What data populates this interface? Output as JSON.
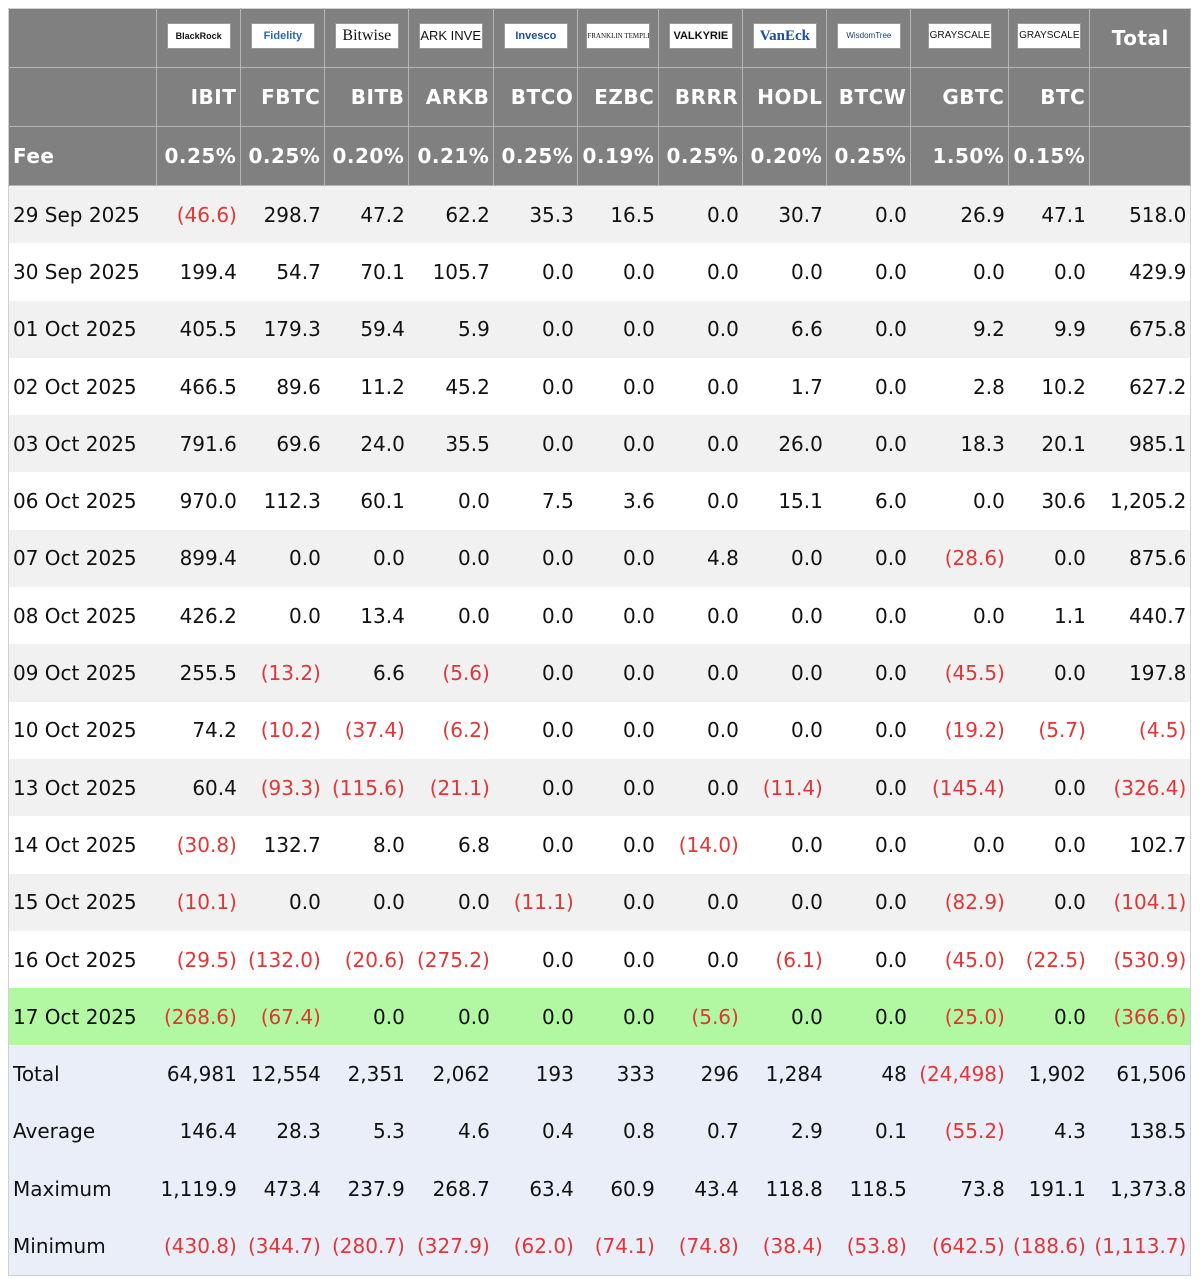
{
  "funds": [
    {
      "logo": "BlackRock",
      "ticker": "IBIT",
      "fee": "0.25%"
    },
    {
      "logo": "Fidelity",
      "ticker": "FBTC",
      "fee": "0.25%"
    },
    {
      "logo": "Bitwise",
      "ticker": "BITB",
      "fee": "0.20%"
    },
    {
      "logo": "ARK INVEST",
      "ticker": "ARKB",
      "fee": "0.21%"
    },
    {
      "logo": "Invesco",
      "ticker": "BTCO",
      "fee": "0.25%"
    },
    {
      "logo": "FRANKLIN TEMPLETON",
      "ticker": "EZBC",
      "fee": "0.19%"
    },
    {
      "logo": "VALKYRIE",
      "ticker": "BRRR",
      "fee": "0.25%"
    },
    {
      "logo": "VanEck",
      "ticker": "HODL",
      "fee": "0.20%"
    },
    {
      "logo": "WisdomTree",
      "ticker": "BTCW",
      "fee": "0.25%"
    },
    {
      "logo": "GRAYSCALE",
      "ticker": "GBTC",
      "fee": "1.50%"
    },
    {
      "logo": "GRAYSCALE",
      "ticker": "BTC",
      "fee": "0.15%"
    }
  ],
  "header": {
    "total_label": "Total",
    "fee_label": "Fee"
  },
  "rows": [
    {
      "date": "29 Sep 2025",
      "values": [
        "(46.6)",
        "298.7",
        "47.2",
        "62.2",
        "35.3",
        "16.5",
        "0.0",
        "30.7",
        "0.0",
        "26.9",
        "47.1"
      ],
      "total": "518.0"
    },
    {
      "date": "30 Sep 2025",
      "values": [
        "199.4",
        "54.7",
        "70.1",
        "105.7",
        "0.0",
        "0.0",
        "0.0",
        "0.0",
        "0.0",
        "0.0",
        "0.0"
      ],
      "total": "429.9"
    },
    {
      "date": "01 Oct 2025",
      "values": [
        "405.5",
        "179.3",
        "59.4",
        "5.9",
        "0.0",
        "0.0",
        "0.0",
        "6.6",
        "0.0",
        "9.2",
        "9.9"
      ],
      "total": "675.8"
    },
    {
      "date": "02 Oct 2025",
      "values": [
        "466.5",
        "89.6",
        "11.2",
        "45.2",
        "0.0",
        "0.0",
        "0.0",
        "1.7",
        "0.0",
        "2.8",
        "10.2"
      ],
      "total": "627.2"
    },
    {
      "date": "03 Oct 2025",
      "values": [
        "791.6",
        "69.6",
        "24.0",
        "35.5",
        "0.0",
        "0.0",
        "0.0",
        "26.0",
        "0.0",
        "18.3",
        "20.1"
      ],
      "total": "985.1"
    },
    {
      "date": "06 Oct 2025",
      "values": [
        "970.0",
        "112.3",
        "60.1",
        "0.0",
        "7.5",
        "3.6",
        "0.0",
        "15.1",
        "6.0",
        "0.0",
        "30.6"
      ],
      "total": "1,205.2"
    },
    {
      "date": "07 Oct 2025",
      "values": [
        "899.4",
        "0.0",
        "0.0",
        "0.0",
        "0.0",
        "0.0",
        "4.8",
        "0.0",
        "0.0",
        "(28.6)",
        "0.0"
      ],
      "total": "875.6"
    },
    {
      "date": "08 Oct 2025",
      "values": [
        "426.2",
        "0.0",
        "13.4",
        "0.0",
        "0.0",
        "0.0",
        "0.0",
        "0.0",
        "0.0",
        "0.0",
        "1.1"
      ],
      "total": "440.7"
    },
    {
      "date": "09 Oct 2025",
      "values": [
        "255.5",
        "(13.2)",
        "6.6",
        "(5.6)",
        "0.0",
        "0.0",
        "0.0",
        "0.0",
        "0.0",
        "(45.5)",
        "0.0"
      ],
      "total": "197.8"
    },
    {
      "date": "10 Oct 2025",
      "values": [
        "74.2",
        "(10.2)",
        "(37.4)",
        "(6.2)",
        "0.0",
        "0.0",
        "0.0",
        "0.0",
        "0.0",
        "(19.2)",
        "(5.7)"
      ],
      "total": "(4.5)"
    },
    {
      "date": "13 Oct 2025",
      "values": [
        "60.4",
        "(93.3)",
        "(115.6)",
        "(21.1)",
        "0.0",
        "0.0",
        "0.0",
        "(11.4)",
        "0.0",
        "(145.4)",
        "0.0"
      ],
      "total": "(326.4)"
    },
    {
      "date": "14 Oct 2025",
      "values": [
        "(30.8)",
        "132.7",
        "8.0",
        "6.8",
        "0.0",
        "0.0",
        "(14.0)",
        "0.0",
        "0.0",
        "0.0",
        "0.0"
      ],
      "total": "102.7"
    },
    {
      "date": "15 Oct 2025",
      "values": [
        "(10.1)",
        "0.0",
        "0.0",
        "0.0",
        "(11.1)",
        "0.0",
        "0.0",
        "0.0",
        "0.0",
        "(82.9)",
        "0.0"
      ],
      "total": "(104.1)"
    },
    {
      "date": "16 Oct 2025",
      "values": [
        "(29.5)",
        "(132.0)",
        "(20.6)",
        "(275.2)",
        "0.0",
        "0.0",
        "0.0",
        "(6.1)",
        "0.0",
        "(45.0)",
        "(22.5)"
      ],
      "total": "(530.9)"
    },
    {
      "date": "17 Oct 2025",
      "values": [
        "(268.6)",
        "(67.4)",
        "0.0",
        "0.0",
        "0.0",
        "0.0",
        "(5.6)",
        "0.0",
        "0.0",
        "(25.0)",
        "0.0"
      ],
      "total": "(366.6)",
      "highlight": true
    }
  ],
  "summary": [
    {
      "label": "Total",
      "values": [
        "64,981",
        "12,554",
        "2,351",
        "2,062",
        "193",
        "333",
        "296",
        "1,284",
        "48",
        "(24,498)",
        "1,902"
      ],
      "total": "61,506"
    },
    {
      "label": "Average",
      "values": [
        "146.4",
        "28.3",
        "5.3",
        "4.6",
        "0.4",
        "0.8",
        "0.7",
        "2.9",
        "0.1",
        "(55.2)",
        "4.3"
      ],
      "total": "138.5"
    },
    {
      "label": "Maximum",
      "values": [
        "1,119.9",
        "473.4",
        "237.9",
        "268.7",
        "63.4",
        "60.9",
        "43.4",
        "118.8",
        "118.5",
        "73.8",
        "191.1"
      ],
      "total": "1,373.8"
    },
    {
      "label": "Minimum",
      "values": [
        "(430.8)",
        "(344.7)",
        "(280.7)",
        "(327.9)",
        "(62.0)",
        "(74.1)",
        "(74.8)",
        "(38.4)",
        "(53.8)",
        "(642.5)",
        "(188.6)"
      ],
      "total": "(1,113.7)"
    }
  ],
  "colors": {
    "header_bg": "#808080",
    "negative": "#e03636",
    "highlight": "#b2f8a2",
    "summary_bg": "#eaeef8",
    "stripe": "#f1f1f1"
  },
  "chart_data": {
    "type": "table",
    "columns": [
      "IBIT",
      "FBTC",
      "BITB",
      "ARKB",
      "BTCO",
      "EZBC",
      "BRRR",
      "HODL",
      "BTCW",
      "GBTC",
      "BTC",
      "Total"
    ],
    "fees": [
      "0.25%",
      "0.25%",
      "0.20%",
      "0.21%",
      "0.25%",
      "0.19%",
      "0.25%",
      "0.20%",
      "0.25%",
      "1.50%",
      "0.15%"
    ],
    "negative_format": "parentheses, red",
    "highlighted_row": "17 Oct 2025"
  }
}
